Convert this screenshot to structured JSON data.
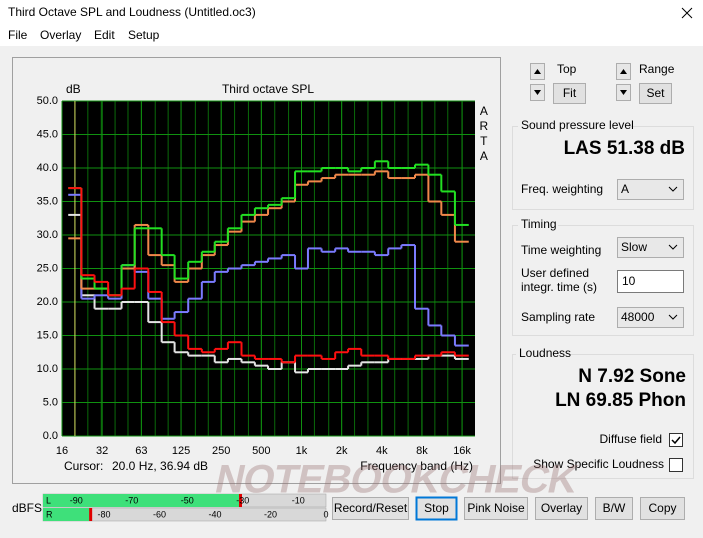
{
  "window": {
    "title": "Third Octave SPL and Loudness (Untitled.oc3)",
    "menu": [
      "File",
      "Overlay",
      "Edit",
      "Setup"
    ]
  },
  "view": {
    "top": "Top",
    "fit": "Fit",
    "range": "Range",
    "set": "Set"
  },
  "chart_data": {
    "type": "line",
    "title": "Third octave SPL",
    "y_label": "dB",
    "x_label": "Frequency band (Hz)",
    "brand": "ARTA",
    "cursor_label": "Cursor:",
    "cursor_value": "20.0 Hz, 36.94 dB",
    "xscale": "log",
    "step": true,
    "grid": true,
    "x": [
      20,
      25,
      31.5,
      40,
      50,
      63,
      80,
      100,
      125,
      160,
      200,
      250,
      315,
      400,
      500,
      630,
      800,
      1000,
      1250,
      1600,
      2000,
      2500,
      3150,
      4000,
      5000,
      6300,
      8000,
      10000,
      12500,
      16000
    ],
    "xlim": [
      16,
      20000
    ],
    "xticks": [
      16,
      32,
      63,
      125,
      250,
      500,
      {
        "value": 1000,
        "label": "1k"
      },
      {
        "value": 2000,
        "label": "2k"
      },
      {
        "value": 4000,
        "label": "4k"
      },
      {
        "value": 8000,
        "label": "8k"
      },
      {
        "value": 16000,
        "label": "16k"
      }
    ],
    "ylim": [
      0,
      50
    ],
    "yticks": [
      {
        "value": 0,
        "label": "0.0"
      },
      {
        "value": 5,
        "label": "5.0"
      },
      {
        "value": 10,
        "label": "10.0"
      },
      {
        "value": 15,
        "label": "15.0"
      },
      {
        "value": 20,
        "label": "20.0"
      },
      {
        "value": 25,
        "label": "25.0"
      },
      {
        "value": 30,
        "label": "30.0"
      },
      {
        "value": 35,
        "label": "35.0"
      },
      {
        "value": 40,
        "label": "40.0"
      },
      {
        "value": 45,
        "label": "45.0"
      },
      {
        "value": 50,
        "label": "50.0"
      }
    ],
    "series": [
      {
        "color": "#e4e4e4",
        "values": [
          33,
          21,
          19,
          19,
          20,
          20,
          17,
          14,
          12.5,
          12,
          12,
          11,
          11.5,
          11,
          10.5,
          10,
          11,
          9.5,
          10,
          10,
          10,
          10.5,
          11,
          11,
          11.5,
          11.5,
          11.5,
          12,
          12,
          11.5
        ]
      },
      {
        "color": "#7b7bff",
        "values": [
          36,
          20.5,
          21,
          20.5,
          25.5,
          24.5,
          20.5,
          17.5,
          18.5,
          20.5,
          23,
          24.5,
          25,
          25.5,
          26,
          26.5,
          27,
          25,
          28,
          27.5,
          28,
          27.5,
          27.5,
          27,
          28,
          28.5,
          19,
          16.5,
          15,
          13.5
        ]
      },
      {
        "color": "#f0884a",
        "values": [
          29.5,
          22,
          22,
          21,
          25,
          31.5,
          27,
          25.5,
          23,
          25,
          27,
          28.5,
          30.5,
          32,
          33,
          34,
          35,
          37.5,
          38,
          38.5,
          39,
          39,
          39,
          39.5,
          38.5,
          38.5,
          39,
          35,
          33,
          29
        ]
      },
      {
        "color": "#22e022",
        "values": [
          37,
          23.5,
          22,
          21,
          25.5,
          31,
          31,
          27,
          23.5,
          26,
          27.5,
          29,
          31,
          33,
          34,
          34.5,
          35.5,
          39.5,
          39.5,
          40,
          40,
          39.5,
          40,
          41,
          40,
          40,
          40.5,
          39,
          36.5,
          31.5
        ]
      },
      {
        "color": "#ff1010",
        "values": [
          37,
          24,
          23,
          21,
          22,
          25,
          21.5,
          17,
          15,
          13,
          12.5,
          13,
          14,
          12,
          11.5,
          11.5,
          11,
          12,
          12,
          11.5,
          12.5,
          13,
          12,
          12,
          11.5,
          11.5,
          12,
          12,
          12.5,
          12
        ]
      }
    ]
  },
  "spl": {
    "group": "Sound pressure level",
    "value": "LAS 51.38 dB",
    "freq_weighting_label": "Freq. weighting",
    "freq_weighting": "A"
  },
  "timing": {
    "group": "Timing",
    "time_weighting_label": "Time weighting",
    "time_weighting": "Slow",
    "integration_label": [
      "User defined",
      "integr. time (s)"
    ],
    "integration_time": 10,
    "sampling_rate_label": "Sampling rate",
    "sampling_rate": 48000
  },
  "loudness": {
    "group": "Loudness",
    "n": "N 7.92 Sone",
    "ln": "LN 69.85 Phon",
    "diffuse_field": {
      "label": "Diffuse field",
      "checked": true
    },
    "show_specific": {
      "label": "Show Specific Loudness",
      "checked": false
    }
  },
  "meters": {
    "label": "dBFS",
    "range": [
      -102,
      0
    ],
    "left": {
      "name": "L",
      "level": -31,
      "ticks": [
        -90,
        -70,
        -50,
        -30,
        -10
      ]
    },
    "right": {
      "name": "R",
      "level": -85,
      "ticks": [
        -80,
        -60,
        -40,
        -20,
        0
      ]
    }
  },
  "buttons": [
    "Record/Reset",
    "Stop",
    "Pink Noise",
    "Overlay",
    "B/W",
    "Copy"
  ],
  "watermark": "NOTEBOOKCHECK"
}
